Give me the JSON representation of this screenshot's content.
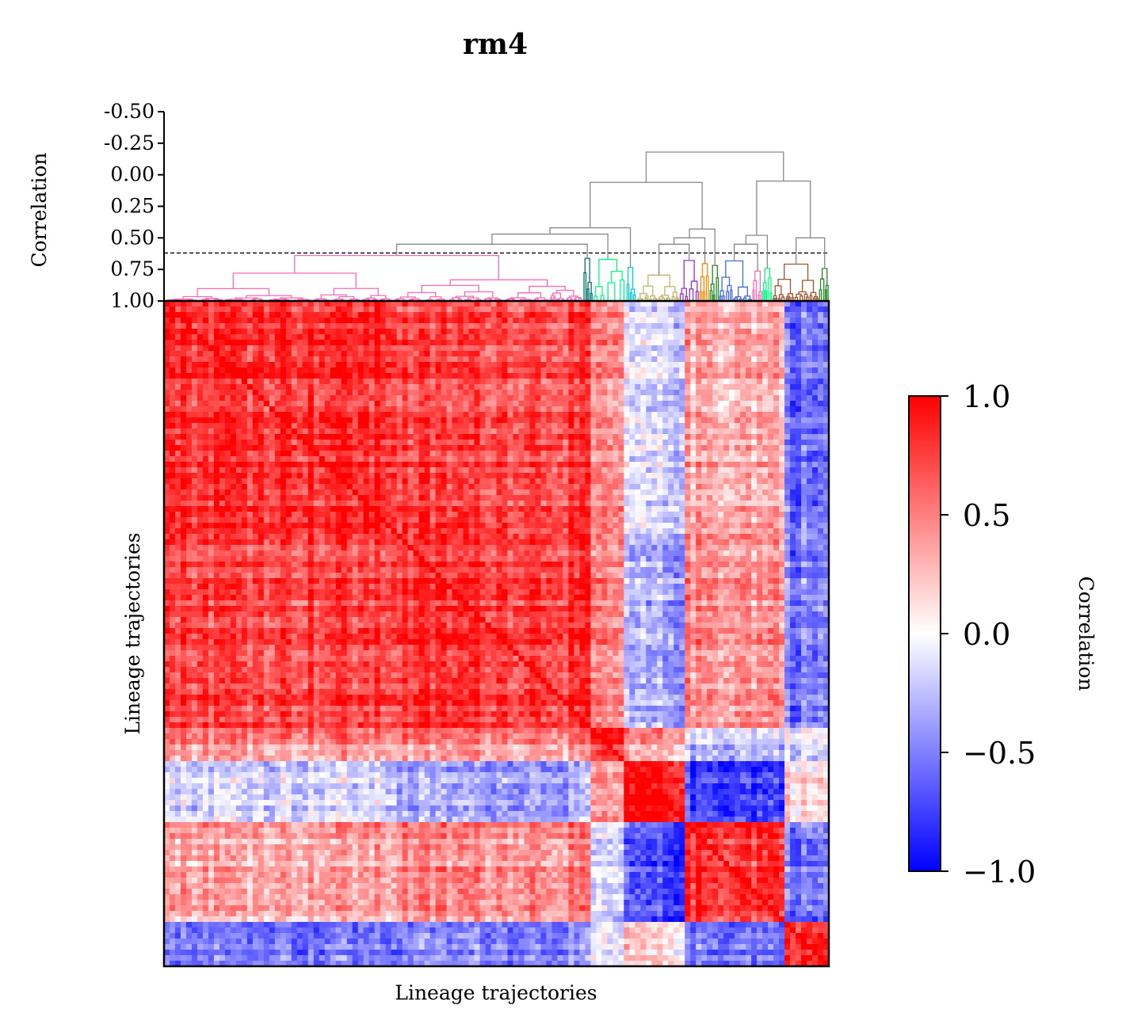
{
  "chart_data": {
    "type": "heatmap",
    "title": "rm4",
    "xlabel": "Lineage trajectories",
    "ylabel": "Lineage trajectories",
    "colorbar": {
      "label": "Correlation",
      "range": [
        -1.0,
        1.0
      ],
      "ticks": [
        1.0,
        0.5,
        0.0,
        -0.5,
        -1.0
      ],
      "tick_labels": [
        "1.0",
        "0.5",
        "0.0",
        "−0.5",
        "−1.0"
      ],
      "colormap": [
        "#0000ff",
        "#ffffff",
        "#ff0000"
      ]
    },
    "dendrogram": {
      "ylabel": "Correlation",
      "ylim": [
        1.0,
        -0.5
      ],
      "ticks": [
        -0.5,
        -0.25,
        0.0,
        0.25,
        0.5,
        0.75,
        1.0
      ],
      "tick_labels": [
        "-0.50",
        "-0.25",
        "0.00",
        "0.25",
        "0.50",
        "0.75",
        "1.00"
      ],
      "threshold": 0.62,
      "link_color": "#888888",
      "clusters": [
        {
          "start": 0.0,
          "end": 0.63,
          "color": "#ff69b4"
        },
        {
          "start": 0.63,
          "end": 0.645,
          "color": "#007070"
        },
        {
          "start": 0.645,
          "end": 0.695,
          "color": "#00ff7f"
        },
        {
          "start": 0.695,
          "end": 0.71,
          "color": "#00ced1"
        },
        {
          "start": 0.71,
          "end": 0.775,
          "color": "#bdb76b"
        },
        {
          "start": 0.775,
          "end": 0.805,
          "color": "#9932cc"
        },
        {
          "start": 0.805,
          "end": 0.82,
          "color": "#ff8c00"
        },
        {
          "start": 0.82,
          "end": 0.835,
          "color": "#228b22"
        },
        {
          "start": 0.835,
          "end": 0.885,
          "color": "#4169e1"
        },
        {
          "start": 0.885,
          "end": 0.9,
          "color": "#ff69b4"
        },
        {
          "start": 0.9,
          "end": 0.915,
          "color": "#00ff7f"
        },
        {
          "start": 0.915,
          "end": 0.985,
          "color": "#a0522d"
        },
        {
          "start": 0.985,
          "end": 1.0,
          "color": "#228b22"
        }
      ]
    },
    "heatmap_blocks": {
      "boundaries": [
        0.0,
        0.35,
        0.64,
        0.69,
        0.78,
        0.93,
        1.0
      ],
      "mean_correlation": [
        [
          0.85,
          0.75,
          0.45,
          -0.15,
          0.35,
          -0.55
        ],
        [
          0.75,
          0.8,
          0.45,
          -0.35,
          0.45,
          -0.5
        ],
        [
          0.45,
          0.45,
          0.8,
          0.35,
          -0.2,
          -0.1
        ],
        [
          -0.15,
          -0.35,
          0.35,
          0.95,
          -0.75,
          0.15
        ],
        [
          0.35,
          0.45,
          -0.2,
          -0.75,
          0.8,
          -0.55
        ],
        [
          -0.55,
          -0.5,
          -0.1,
          0.15,
          -0.55,
          0.85
        ]
      ]
    }
  }
}
